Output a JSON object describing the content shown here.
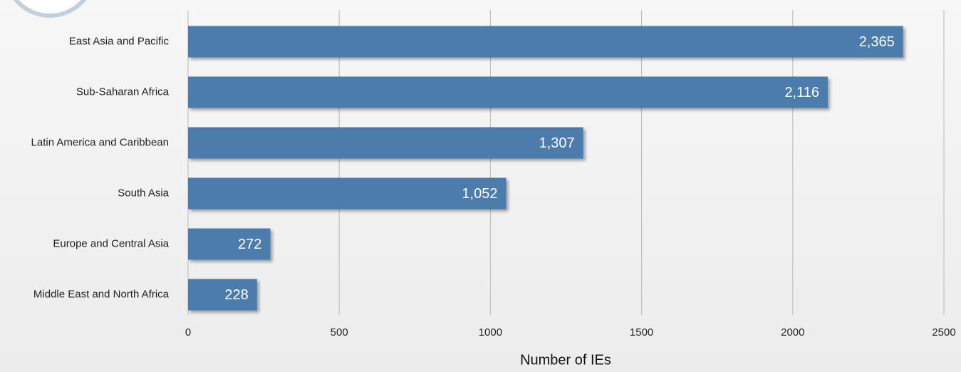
{
  "chart_data": {
    "type": "bar",
    "orientation": "horizontal",
    "categories": [
      "East Asia and Pacific",
      "Sub-Saharan Africa",
      "Latin America and Caribbean",
      "South Asia",
      "Europe and Central Asia",
      "Middle East and North Africa"
    ],
    "values": [
      2365,
      2116,
      1307,
      1052,
      272,
      228
    ],
    "value_labels": [
      "2,365",
      "2,116",
      "1,307",
      "1,052",
      "272",
      "228"
    ],
    "color": "#4b7bab",
    "xlim": [
      0,
      2500
    ],
    "xticks": [
      0,
      500,
      1000,
      1500,
      2000,
      2500
    ],
    "x_label": "Number of IEs",
    "grid": true
  }
}
